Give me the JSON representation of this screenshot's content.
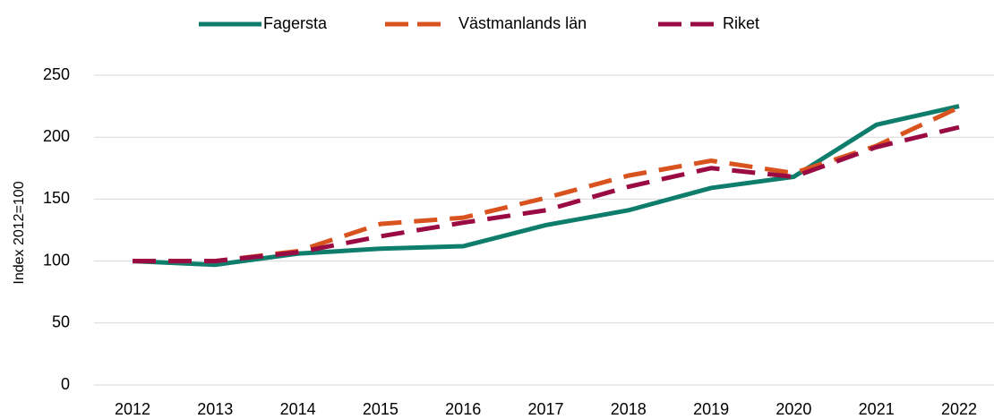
{
  "chart_data": {
    "type": "line",
    "x": [
      2012,
      2013,
      2014,
      2015,
      2016,
      2017,
      2018,
      2019,
      2020,
      2021,
      2022
    ],
    "y_label": "Index 2012=100",
    "ylim": [
      0,
      250
    ],
    "yticks": [
      0,
      50,
      100,
      150,
      200,
      250
    ],
    "grid": true,
    "legend": "top",
    "series": [
      {
        "name": "Fagersta",
        "color": "#0e7d6c",
        "dashed": false,
        "values": [
          100,
          97,
          106,
          110,
          112,
          129,
          141,
          159,
          168,
          210,
          225
        ]
      },
      {
        "name": "Västmanlands län",
        "color": "#d9531e",
        "dashed": true,
        "values": [
          100,
          100,
          108,
          130,
          135,
          151,
          169,
          181,
          171,
          193,
          224
        ]
      },
      {
        "name": "Riket",
        "color": "#9b0b43",
        "dashed": true,
        "values": [
          100,
          100,
          107,
          120,
          131,
          141,
          160,
          175,
          168,
          192,
          208
        ]
      }
    ]
  }
}
